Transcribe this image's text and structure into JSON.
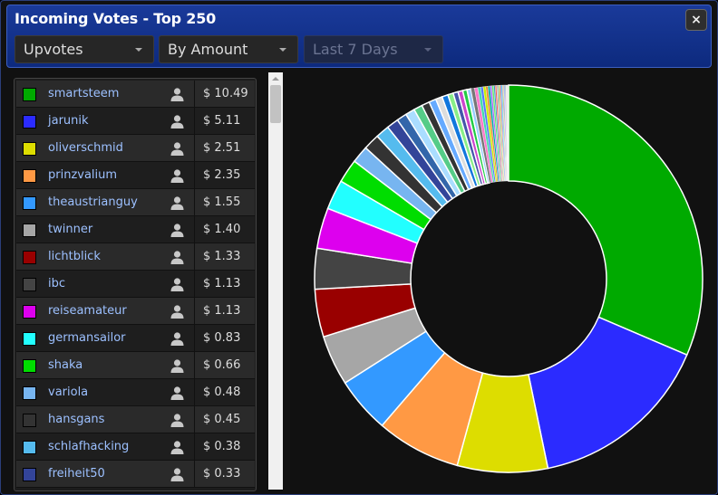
{
  "window": {
    "title": "Incoming Votes - Top 250",
    "close_label": "×"
  },
  "filters": {
    "type": "Upvotes",
    "sort": "By Amount",
    "period": "Last 7 Days"
  },
  "voters": [
    {
      "name": "smartsteem",
      "amount": "$ 10.49",
      "color": "#00aa00"
    },
    {
      "name": "jarunik",
      "amount": "$ 5.11",
      "color": "#2b2bff"
    },
    {
      "name": "oliverschmid",
      "amount": "$ 2.51",
      "color": "#dddd00"
    },
    {
      "name": "prinzvalium",
      "amount": "$ 2.35",
      "color": "#ff9944"
    },
    {
      "name": "theaustrianguy",
      "amount": "$ 1.55",
      "color": "#3399ff"
    },
    {
      "name": "twinner",
      "amount": "$ 1.40",
      "color": "#a6a6a6"
    },
    {
      "name": "lichtblick",
      "amount": "$ 1.33",
      "color": "#990000"
    },
    {
      "name": "ibc",
      "amount": "$ 1.13",
      "color": "#444444"
    },
    {
      "name": "reiseamateur",
      "amount": "$ 1.13",
      "color": "#dd00ee"
    },
    {
      "name": "germansailor",
      "amount": "$ 0.83",
      "color": "#22ffff"
    },
    {
      "name": "shaka",
      "amount": "$ 0.66",
      "color": "#00dd00"
    },
    {
      "name": "variola",
      "amount": "$ 0.48",
      "color": "#77b5f0"
    },
    {
      "name": "hansgans",
      "amount": "$ 0.45",
      "color": "#333333"
    },
    {
      "name": "schlafhacking",
      "amount": "$ 0.38",
      "color": "#55bbee"
    },
    {
      "name": "freiheit50",
      "amount": "$ 0.33",
      "color": "#334499"
    }
  ],
  "chart_data": {
    "type": "pie",
    "donut": true,
    "categories": [
      "smartsteem",
      "jarunik",
      "oliverschmid",
      "prinzvalium",
      "theaustrianguy",
      "twinner",
      "lichtblick",
      "ibc",
      "reiseamateur",
      "germansailor",
      "shaka",
      "variola",
      "hansgans",
      "schlafhacking",
      "freiheit50"
    ],
    "values": [
      10.49,
      5.11,
      2.51,
      2.35,
      1.55,
      1.4,
      1.33,
      1.13,
      1.13,
      0.83,
      0.66,
      0.48,
      0.45,
      0.38,
      0.33
    ],
    "other_values": [
      0.28,
      0.26,
      0.24,
      0.22,
      0.2,
      0.18,
      0.17,
      0.15,
      0.14,
      0.13,
      0.12,
      0.11,
      0.1,
      0.09,
      0.08,
      0.07,
      0.07,
      0.06,
      0.06,
      0.05,
      0.05,
      0.04,
      0.04,
      0.04,
      0.03,
      0.03,
      0.03,
      0.03,
      0.02,
      0.02,
      0.02,
      0.02,
      0.02,
      0.01,
      0.01,
      0.01,
      0.01,
      0.01,
      0.01,
      0.01
    ],
    "other_colors": [
      "#3366aa",
      "#aaddff",
      "#55cc88",
      "#333333",
      "#66aaff",
      "#dddddd",
      "#1177dd",
      "#88ee88",
      "#4455aa",
      "#cc44cc",
      "#22cc44",
      "#99ccff",
      "#777777",
      "#ff77cc",
      "#44ddaa",
      "#5577ff",
      "#ccee00",
      "#ee8833",
      "#00aaaa",
      "#aa66ff",
      "#66ee66",
      "#3399cc",
      "#ff5555",
      "#bbbbbb",
      "#55aa55",
      "#ffbb22",
      "#7744cc",
      "#22ddee",
      "#cc2266",
      "#88cc00",
      "#2255dd",
      "#ee66ee",
      "#33bb99",
      "#dd9900",
      "#6688ff",
      "#aa3333",
      "#44cc44",
      "#cc88ff",
      "#2299aa",
      "#ffcc66"
    ]
  }
}
